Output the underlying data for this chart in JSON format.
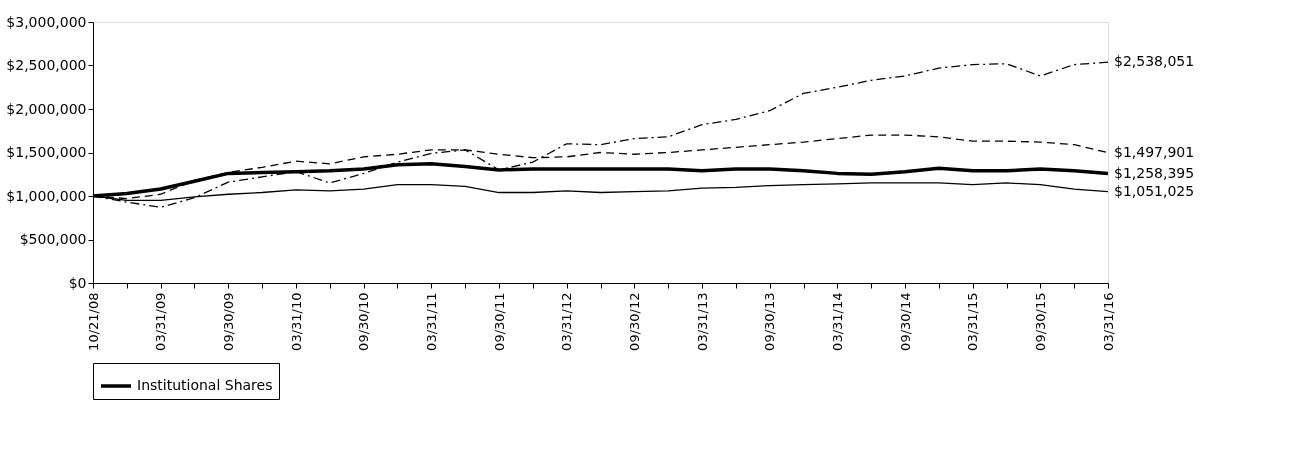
{
  "chart_data": {
    "type": "line",
    "categories": [
      "10/21/08",
      null,
      "03/31/09",
      null,
      "09/30/09",
      null,
      "03/31/10",
      null,
      "09/30/10",
      null,
      "03/31/11",
      null,
      "09/30/11",
      null,
      "03/31/12",
      null,
      "09/30/12",
      null,
      "03/31/13",
      null,
      "09/30/13",
      null,
      "03/31/14",
      null,
      "09/30/14",
      null,
      "03/31/15",
      null,
      "09/30/15",
      null,
      "03/31/16"
    ],
    "series": [
      {
        "name": "Institutional Shares",
        "color": "#000000",
        "line_style": "solid",
        "values": [
          1000000,
          1030000,
          1080000,
          1170000,
          1260000,
          1270000,
          1280000,
          1290000,
          1310000,
          1360000,
          1370000,
          1340000,
          1300000,
          1310000,
          1310000,
          1310000,
          1310000,
          1310000,
          1290000,
          1310000,
          1310000,
          1290000,
          1260000,
          1250000,
          1280000,
          1320000,
          1290000,
          1290000,
          1310000,
          1290000,
          1258395
        ],
        "value_labels": [
          null,
          null,
          null,
          null,
          null,
          null,
          null,
          null,
          null,
          null,
          null,
          null,
          null,
          null,
          null,
          null,
          null,
          null,
          null,
          null,
          null,
          null,
          null,
          null,
          null,
          null,
          null,
          null,
          null,
          null,
          "$1,258,395"
        ]
      },
      {
        "color": "#000000",
        "line_style": "dashed",
        "values": [
          1000000,
          970000,
          1020000,
          1180000,
          1270000,
          1330000,
          1400000,
          1370000,
          1450000,
          1480000,
          1530000,
          1530000,
          1480000,
          1440000,
          1450000,
          1500000,
          1480000,
          1500000,
          1530000,
          1560000,
          1590000,
          1620000,
          1660000,
          1700000,
          1700000,
          1680000,
          1630000,
          1630000,
          1620000,
          1590000,
          1497901
        ],
        "value_labels": [
          null,
          null,
          null,
          null,
          null,
          null,
          null,
          null,
          null,
          null,
          null,
          null,
          null,
          null,
          null,
          null,
          null,
          null,
          null,
          null,
          null,
          null,
          null,
          null,
          null,
          null,
          null,
          null,
          null,
          null,
          "$1,497,901"
        ]
      },
      {
        "color": "#000000",
        "line_style": "dashdot",
        "values": [
          1000000,
          930000,
          870000,
          980000,
          1160000,
          1220000,
          1280000,
          1150000,
          1260000,
          1390000,
          1490000,
          1530000,
          1300000,
          1390000,
          1600000,
          1590000,
          1660000,
          1680000,
          1820000,
          1880000,
          1980000,
          2180000,
          2250000,
          2330000,
          2380000,
          2470000,
          2510000,
          2520000,
          2380000,
          2510000,
          2538051
        ],
        "value_labels": [
          null,
          null,
          null,
          null,
          null,
          null,
          null,
          null,
          null,
          null,
          null,
          null,
          null,
          null,
          null,
          null,
          null,
          null,
          null,
          null,
          null,
          null,
          null,
          null,
          null,
          null,
          null,
          null,
          null,
          null,
          "$2,538,051"
        ]
      },
      {
        "color": "#000000",
        "line_style": "solid",
        "values": [
          1000000,
          950000,
          950000,
          990000,
          1020000,
          1040000,
          1070000,
          1060000,
          1080000,
          1130000,
          1130000,
          1110000,
          1040000,
          1040000,
          1060000,
          1040000,
          1050000,
          1060000,
          1090000,
          1100000,
          1120000,
          1130000,
          1140000,
          1150000,
          1150000,
          1150000,
          1130000,
          1150000,
          1130000,
          1080000,
          1051025
        ],
        "value_labels": [
          null,
          null,
          null,
          null,
          null,
          null,
          null,
          null,
          null,
          null,
          null,
          null,
          null,
          null,
          null,
          null,
          null,
          null,
          null,
          null,
          null,
          null,
          null,
          null,
          null,
          null,
          null,
          null,
          null,
          null,
          "$1,051,025"
        ]
      }
    ],
    "ylim": [
      0,
      3000000
    ],
    "yticks": [
      {
        "value": 0,
        "label": "$0"
      },
      {
        "value": 500000,
        "label": "$500,000"
      },
      {
        "value": 1000000,
        "label": "$1,000,000"
      },
      {
        "value": 1500000,
        "label": "$1,500,000"
      },
      {
        "value": 2000000,
        "label": "$2,000,000"
      },
      {
        "value": 2500000,
        "label": "$2,500,000"
      },
      {
        "value": 3000000,
        "label": "$3,000,000"
      }
    ],
    "grid": false,
    "legend": "bottom"
  }
}
